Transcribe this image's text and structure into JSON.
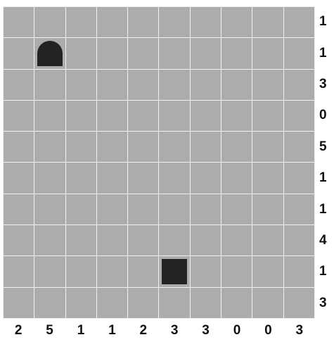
{
  "puzzle": {
    "rows": 10,
    "cols": 10,
    "row_clues": [
      "1",
      "1",
      "3",
      "0",
      "5",
      "1",
      "1",
      "4",
      "1",
      "3"
    ],
    "col_clues": [
      "2",
      "5",
      "1",
      "1",
      "2",
      "3",
      "3",
      "0",
      "0",
      "3"
    ],
    "pieces": [
      {
        "row": 1,
        "col": 1,
        "type": "tent"
      },
      {
        "row": 8,
        "col": 5,
        "type": "block"
      }
    ]
  },
  "colors": {
    "cell": "#acacac",
    "grid_line": "#f2f2f2",
    "piece": "#232323",
    "clue_text": "#111111"
  }
}
